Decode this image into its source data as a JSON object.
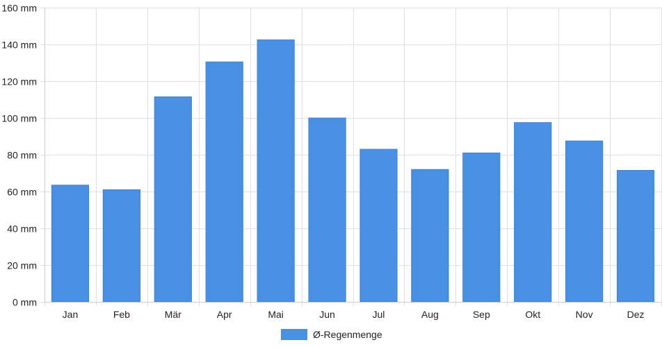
{
  "chart_data": {
    "type": "bar",
    "categories": [
      "Jan",
      "Feb",
      "Mär",
      "Apr",
      "Mai",
      "Jun",
      "Jul",
      "Aug",
      "Sep",
      "Okt",
      "Nov",
      "Dez"
    ],
    "series": [
      {
        "name": "Ø-Regenmenge",
        "values": [
          63.5,
          61,
          111.5,
          130.5,
          142.5,
          100,
          83,
          72,
          81,
          97.5,
          87.5,
          71.5
        ],
        "color": "#4a90e2"
      }
    ],
    "y_unit_suffix": " mm",
    "ylim": [
      0,
      160
    ],
    "y_ticks": [
      0,
      20,
      40,
      60,
      80,
      100,
      120,
      140,
      160
    ],
    "grid": true,
    "legend_position": "bottom-center",
    "colors": {
      "bar": "#4a90e2",
      "grid": "#e0e0e0",
      "axis": "#cccccc",
      "text": "#222222"
    }
  }
}
